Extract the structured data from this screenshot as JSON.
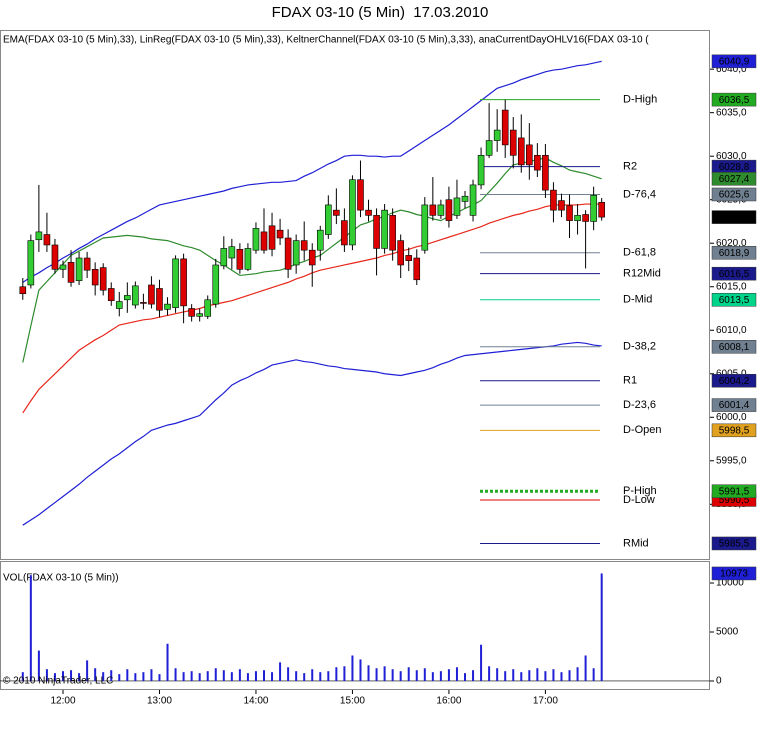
{
  "title": "FDAX 03-10 (5 Min)  17.03.2010",
  "copyright": "© 2010 NinjaTrader, LLC",
  "chart_data": [
    {
      "type": "candlestick",
      "header": "EMA(FDAX 03-10 (5 Min),33), LinReg(FDAX 03-10 (5 Min),33), KeltnerChannel(FDAX 03-10 (5 Min),3,33), anaCurrentDayOHLV16(FDAX 03-10 (",
      "up_color": "#32cd32",
      "down_color": "#dd0000",
      "ylim": [
        5983.6,
        6044.5
      ],
      "yticks": [
        {
          "value": 6040,
          "label": "6040,0"
        },
        {
          "value": 6035,
          "label": "6035,0"
        },
        {
          "value": 6030,
          "label": "6030,0"
        },
        {
          "value": 6025,
          "label": "6025,0"
        },
        {
          "value": 6020,
          "label": "6020,0"
        },
        {
          "value": 6015,
          "label": "6015,0"
        },
        {
          "value": 6010,
          "label": "6010,0"
        },
        {
          "value": 6005,
          "label": "6005,0"
        },
        {
          "value": 6000,
          "label": "6000,0"
        },
        {
          "value": 5995,
          "label": "5995,0"
        },
        {
          "value": 5990,
          "label": "5990,0"
        }
      ],
      "open": [
        6015.0,
        6015.2,
        6020.4,
        6021.0,
        6019.8,
        6017.0,
        6017.8,
        6015.7,
        6018.3,
        6017.0,
        6017.2,
        6014.8,
        6012.5,
        6013.5,
        6012.9,
        6013.2,
        6015.2,
        6014.8,
        6012.4,
        6012.6,
        6018.2,
        6012.5,
        6011.6,
        6011.6,
        6013.0,
        6017.4,
        6018.3,
        6019.3,
        6017.0,
        6019.2,
        6021.3,
        6022.0,
        6021.5,
        6020.6,
        6017.5,
        6020.3,
        6019.2,
        6019.2,
        6021.0,
        6023.8,
        6022.6,
        6019.8,
        6027.3,
        6023.8,
        6023.2,
        6019.4,
        6023.2,
        6020.3,
        6018.6,
        6018.3,
        6019.2,
        6024.4,
        6023.2,
        6025.0,
        6023.2,
        6024.8,
        6023.2,
        6026.7,
        6030.1,
        6031.8,
        6035.3,
        6033.0,
        6032.1,
        6031.3,
        6030.1,
        6030.1,
        6026.1,
        6024.9,
        6024.3,
        6022.6,
        6023.3,
        6022.5,
        6024.7
      ],
      "high": [
        6016.0,
        6021.0,
        6026.7,
        6023.5,
        6020.5,
        6018.0,
        6019.2,
        6019.0,
        6019.0,
        6017.8,
        6017.7,
        6015.5,
        6014.4,
        6015.5,
        6015.6,
        6014.2,
        6016.2,
        6015.8,
        6013.8,
        6018.6,
        6018.8,
        6013.0,
        6012.5,
        6014.0,
        6018.2,
        6020.8,
        6020.5,
        6020.0,
        6020.0,
        6022.4,
        6024.0,
        6023.5,
        6022.8,
        6021.6,
        6021.0,
        6022.5,
        6020.0,
        6022.0,
        6025.5,
        6026.3,
        6024.0,
        6027.8,
        6029.5,
        6025.0,
        6024.0,
        6024.5,
        6024.0,
        6021.0,
        6019.5,
        6019.3,
        6025.3,
        6027.6,
        6025.0,
        6026.5,
        6027.3,
        6026.0,
        6027.3,
        6031.0,
        6036.1,
        6035.4,
        6036.5,
        6034.5,
        6034.8,
        6033.8,
        6031.5,
        6031.4,
        6027.0,
        6025.7,
        6025.6,
        6024.5,
        6023.8,
        6026.5,
        6025.2
      ],
      "low": [
        6013.5,
        6014.8,
        6019.0,
        6019.0,
        6016.5,
        6016.0,
        6015.0,
        6015.2,
        6016.0,
        6014.0,
        6014.0,
        6012.8,
        6011.6,
        6012.0,
        6012.5,
        6012.4,
        6012.5,
        6011.5,
        6011.7,
        6012.0,
        6010.8,
        6011.0,
        6011.0,
        6011.3,
        6012.6,
        6017.0,
        6017.0,
        6016.5,
        6016.8,
        6018.8,
        6018.8,
        6018.5,
        6019.8,
        6016.0,
        6016.5,
        6018.0,
        6015.0,
        6018.0,
        6020.5,
        6022.2,
        6019.0,
        6019.2,
        6023.0,
        6022.5,
        6016.3,
        6018.8,
        6018.0,
        6016.0,
        6016.8,
        6015.2,
        6018.8,
        6022.6,
        6022.8,
        6021.8,
        6022.8,
        6024.0,
        6022.5,
        6026.2,
        6029.8,
        6030.5,
        6029.8,
        6028.6,
        6028.1,
        6027.3,
        6027.6,
        6025.2,
        6022.4,
        6023.0,
        6020.6,
        6021.0,
        6017.1,
        6021.5,
        6022.6
      ],
      "close": [
        6014.2,
        6020.3,
        6021.3,
        6019.8,
        6017.0,
        6017.5,
        6015.5,
        6018.3,
        6016.9,
        6015.2,
        6014.6,
        6013.4,
        6013.3,
        6014.0,
        6015.1,
        6013.1,
        6013.0,
        6012.3,
        6013.0,
        6018.2,
        6012.8,
        6011.6,
        6011.9,
        6013.5,
        6017.5,
        6019.4,
        6019.6,
        6017.0,
        6019.4,
        6021.7,
        6019.2,
        6019.3,
        6020.6,
        6017.0,
        6020.3,
        6019.2,
        6017.5,
        6021.5,
        6024.4,
        6023.2,
        6019.8,
        6027.3,
        6023.8,
        6023.2,
        6019.4,
        6023.8,
        6019.2,
        6017.5,
        6018.0,
        6015.8,
        6024.4,
        6023.2,
        6024.4,
        6022.6,
        6025.2,
        6025.4,
        6026.7,
        6030.1,
        6031.8,
        6033.0,
        6031.3,
        6030.1,
        6029.0,
        6029.0,
        6028.4,
        6026.1,
        6023.8,
        6023.8,
        6022.6,
        6023.2,
        6022.5,
        6025.5,
        6023.0
      ],
      "close_label": "6023,0",
      "series": [
        {
          "color": "#1f1fd6",
          "value_label": "6040,9",
          "values": [
            6015.5,
            6016.1,
            6016.6,
            6017.2,
            6017.7,
            6018.3,
            6018.8,
            6019.4,
            6019.9,
            6020.5,
            6021.0,
            6021.5,
            6022.0,
            6022.5,
            6022.9,
            6023.4,
            6023.9,
            6024.4,
            6024.6,
            6024.8,
            6025.0,
            6025.2,
            6025.4,
            6025.6,
            6025.8,
            6026.0,
            6026.3,
            6026.5,
            6026.7,
            6026.8,
            6026.9,
            6027.0,
            6027.0,
            6027.1,
            6027.2,
            6027.7,
            6028.1,
            6028.6,
            6029.1,
            6029.5,
            6030.0,
            6030.1,
            6030.1,
            6030.0,
            6030.0,
            6029.9,
            6030.0,
            6030.0,
            6030.6,
            6031.2,
            6031.8,
            6032.4,
            6033.0,
            6033.6,
            6034.3,
            6035.0,
            6035.7,
            6036.4,
            6037.1,
            6037.8,
            6038.1,
            6038.4,
            6038.8,
            6039.1,
            6039.4,
            6039.7,
            6039.9,
            6040.0,
            6040.2,
            6040.4,
            6040.5,
            6040.7,
            6040.9
          ]
        },
        {
          "color": "#1f1fd6",
          "values": [
            5987.6,
            5988.2,
            5988.8,
            5989.5,
            5990.2,
            5990.9,
            5991.6,
            5992.3,
            5993.1,
            5993.8,
            5994.5,
            5995.2,
            5995.8,
            5996.5,
            5997.2,
            5997.8,
            5998.5,
            5998.8,
            5999.1,
            5999.3,
            5999.6,
            5999.9,
            6000.2,
            6001.1,
            6002.0,
            6002.8,
            6003.7,
            6004.2,
            6004.6,
            6005.1,
            6005.5,
            6006.0,
            6006.2,
            6006.4,
            6006.6,
            6006.4,
            6006.3,
            6006.1,
            6005.9,
            6005.8,
            6005.6,
            6005.5,
            6005.4,
            6005.3,
            6005.2,
            6005.0,
            6004.9,
            6004.8,
            6005.0,
            6005.2,
            6005.4,
            6005.7,
            6006.1,
            6006.4,
            6006.8,
            6007.1,
            6007.2,
            6007.3,
            6007.4,
            6007.5,
            6007.6,
            6007.7,
            6007.8,
            6007.9,
            6008.0,
            6008.1,
            6008.2,
            6008.4,
            6008.5,
            6008.6,
            6008.5,
            6008.3,
            6008.2
          ]
        },
        {
          "color": "#e8271a",
          "values": [
            6000.5,
            6001.9,
            6003.2,
            6004.1,
            6005.0,
            6005.9,
            6006.8,
            6007.7,
            6008.3,
            6008.9,
            6009.4,
            6010.0,
            6010.6,
            6010.8,
            6011.0,
            6011.2,
            6011.3,
            6011.5,
            6011.7,
            6011.9,
            6012.1,
            6012.3,
            6012.5,
            6012.8,
            6013.0,
            6013.2,
            6013.4,
            6013.7,
            6014.0,
            6014.3,
            6014.6,
            6014.9,
            6015.2,
            6015.5,
            6015.9,
            6016.2,
            6016.6,
            6016.9,
            6017.1,
            6017.3,
            6017.5,
            6017.7,
            6017.9,
            6018.1,
            6018.3,
            6018.6,
            6018.8,
            6019.1,
            6019.3,
            6019.6,
            6019.8,
            6020.1,
            6020.4,
            6020.7,
            6021.0,
            6021.3,
            6021.6,
            6021.9,
            6022.3,
            6022.6,
            6022.9,
            6023.2,
            6023.4,
            6023.7,
            6023.9,
            6024.2,
            6024.4,
            6024.4,
            6024.4,
            6024.4,
            6024.5,
            6024.5,
            6024.5
          ]
        },
        {
          "color": "#2e8b2e",
          "value_label": "6027,4",
          "values": [
            6006.3,
            6010.5,
            6014.6,
            6015.6,
            6016.6,
            6017.6,
            6018.6,
            6019.1,
            6019.6,
            6020.1,
            6020.6,
            6020.7,
            6020.8,
            6020.9,
            6020.8,
            6020.7,
            6020.5,
            6020.4,
            6020.3,
            6020.0,
            6019.7,
            6019.5,
            6019.2,
            6018.6,
            6018.0,
            6017.5,
            6016.9,
            6016.3,
            6016.4,
            6016.5,
            6016.7,
            6016.8,
            6016.9,
            6017.2,
            6017.6,
            6017.9,
            6018.3,
            6018.6,
            6019.3,
            6020.0,
            6020.7,
            6021.4,
            6022.1,
            6022.4,
            6022.8,
            6023.1,
            6023.5,
            6023.8,
            6023.6,
            6023.3,
            6023.1,
            6022.8,
            6022.6,
            6023.1,
            6023.5,
            6024.0,
            6024.4,
            6024.9,
            6025.9,
            6026.9,
            6028.0,
            6029.0,
            6029.2,
            6029.4,
            6029.6,
            6029.8,
            6029.3,
            6028.9,
            6028.4,
            6028.2,
            6028.0,
            6027.7,
            6027.4
          ]
        }
      ],
      "levels": [
        {
          "name": "D-High",
          "value": 6036.5,
          "value_label": "6036,5",
          "color": "#22aa22"
        },
        {
          "name": "R2",
          "value": 6028.8,
          "value_label": "6028,8",
          "color": "#1a1a8c"
        },
        {
          "name": "D-76,4",
          "value": 6025.6,
          "value_label": "6025,6",
          "color": "#708090"
        },
        {
          "name": "D-61,8",
          "value": 6018.9,
          "value_label": "6018,9",
          "color": "#708090"
        },
        {
          "name": "R12Mid",
          "value": 6016.5,
          "value_label": "6016,5",
          "color": "#1a1a8c"
        },
        {
          "name": "D-Mid",
          "value": 6013.5,
          "value_label": "6013,5",
          "color": "#00d38a"
        },
        {
          "name": "D-38,2",
          "value": 6008.1,
          "value_label": "6008,1",
          "color": "#708090"
        },
        {
          "name": "R1",
          "value": 6004.2,
          "value_label": "6004,2",
          "color": "#1a1a8c"
        },
        {
          "name": "D-23,6",
          "value": 6001.4,
          "value_label": "6001,4",
          "color": "#708090"
        },
        {
          "name": "D-Open",
          "value": 5998.5,
          "value_label": "5998,5",
          "color": "#e0a020"
        },
        {
          "name": "D-Low",
          "value": 5990.5,
          "value_label": "5990,5",
          "color": "#dd0000"
        },
        {
          "name": "P-High",
          "value": 5991.5,
          "value_label": "5991,5",
          "color": "#22aa22",
          "style": "dotted"
        },
        {
          "name": "RMid",
          "value": 5985.5,
          "value_label": "5985,5",
          "color": "#1a1a8c"
        }
      ]
    },
    {
      "type": "bar",
      "label": "VOL(FDAX 03-10 (5 Min))",
      "color": "#1f1fd6",
      "label_last": true,
      "ylim": [
        -920,
        12040
      ],
      "yticks": [
        0,
        5000,
        10000
      ],
      "categories": [
        null,
        null,
        null,
        null,
        null,
        "12:00",
        null,
        null,
        null,
        null,
        null,
        null,
        null,
        null,
        null,
        null,
        null,
        "13:00",
        null,
        null,
        null,
        null,
        null,
        null,
        null,
        null,
        null,
        null,
        null,
        "14:00",
        null,
        null,
        null,
        null,
        null,
        null,
        null,
        null,
        null,
        null,
        null,
        "15:00",
        null,
        null,
        null,
        null,
        null,
        null,
        null,
        null,
        null,
        null,
        null,
        "16:00",
        null,
        null,
        null,
        null,
        null,
        null,
        null,
        null,
        null,
        null,
        null,
        "17:00",
        null,
        null,
        null,
        null,
        null,
        null,
        null
      ],
      "values": [
        900,
        10800,
        3100,
        1200,
        800,
        1000,
        1100,
        800,
        2100,
        1300,
        900,
        1100,
        700,
        1200,
        800,
        900,
        1200,
        700,
        3800,
        1300,
        900,
        1000,
        800,
        1000,
        1300,
        1100,
        900,
        1200,
        800,
        1000,
        1100,
        900,
        1900,
        1400,
        1000,
        800,
        1200,
        900,
        1000,
        1400,
        1500,
        2600,
        2200,
        1600,
        1300,
        1500,
        1200,
        1000,
        1400,
        1100,
        1300,
        900,
        1000,
        1200,
        1400,
        800,
        1100,
        3700,
        1500,
        1300,
        1000,
        1200,
        900,
        1100,
        1300,
        1000,
        1200,
        900,
        1100,
        1400,
        2600,
        1300,
        10973
      ]
    }
  ]
}
